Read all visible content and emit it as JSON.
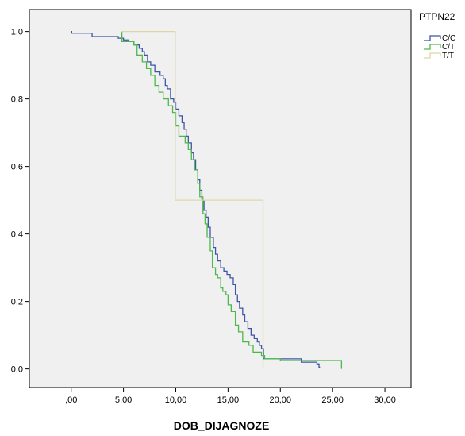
{
  "chart_data": {
    "type": "line",
    "step": true,
    "xlabel": "DOB_DIJAGNOZE",
    "ylabel": "",
    "xlim": [
      -4,
      32.5
    ],
    "ylim": [
      -0.055,
      1.065
    ],
    "xticks": [
      0,
      5,
      10,
      15,
      20,
      25,
      30
    ],
    "xtick_labels": [
      ",00",
      "5,00",
      "10,00",
      "15,00",
      "20,00",
      "25,00",
      "30,00"
    ],
    "yticks": [
      0,
      0.2,
      0.4,
      0.6,
      0.8,
      1.0
    ],
    "ytick_labels": [
      "0,0",
      "0,2",
      "0,4",
      "0,6",
      "0,8",
      "1,0"
    ],
    "grid": false,
    "plot_background": "#f0f0f0",
    "legend": {
      "title": "PTPN22",
      "placement": "right"
    },
    "series": [
      {
        "name": "C/C",
        "color": "#3e55a8",
        "points": [
          [
            0.0,
            1.0
          ],
          [
            0.05,
            0.995
          ],
          [
            2.0,
            0.985
          ],
          [
            4.5,
            0.98
          ],
          [
            5.0,
            0.975
          ],
          [
            5.5,
            0.97
          ],
          [
            6.0,
            0.96
          ],
          [
            6.5,
            0.95
          ],
          [
            6.8,
            0.94
          ],
          [
            7.0,
            0.93
          ],
          [
            7.3,
            0.91
          ],
          [
            7.6,
            0.9
          ],
          [
            8.0,
            0.88
          ],
          [
            8.5,
            0.87
          ],
          [
            8.8,
            0.86
          ],
          [
            9.0,
            0.84
          ],
          [
            9.2,
            0.83
          ],
          [
            9.5,
            0.8
          ],
          [
            9.8,
            0.79
          ],
          [
            10.0,
            0.77
          ],
          [
            10.3,
            0.75
          ],
          [
            10.6,
            0.73
          ],
          [
            10.8,
            0.71
          ],
          [
            11.0,
            0.69
          ],
          [
            11.2,
            0.67
          ],
          [
            11.5,
            0.64
          ],
          [
            11.7,
            0.62
          ],
          [
            11.9,
            0.59
          ],
          [
            12.1,
            0.56
          ],
          [
            12.3,
            0.53
          ],
          [
            12.5,
            0.5
          ],
          [
            12.7,
            0.47
          ],
          [
            12.9,
            0.45
          ],
          [
            13.1,
            0.42
          ],
          [
            13.3,
            0.39
          ],
          [
            13.6,
            0.36
          ],
          [
            13.8,
            0.34
          ],
          [
            14.0,
            0.32
          ],
          [
            14.3,
            0.3
          ],
          [
            14.6,
            0.29
          ],
          [
            14.9,
            0.28
          ],
          [
            15.2,
            0.27
          ],
          [
            15.5,
            0.25
          ],
          [
            15.7,
            0.22
          ],
          [
            15.9,
            0.2
          ],
          [
            16.1,
            0.18
          ],
          [
            16.4,
            0.16
          ],
          [
            16.6,
            0.14
          ],
          [
            16.9,
            0.12
          ],
          [
            17.2,
            0.1
          ],
          [
            17.5,
            0.09
          ],
          [
            17.8,
            0.08
          ],
          [
            18.0,
            0.07
          ],
          [
            18.2,
            0.06
          ],
          [
            18.4,
            0.03
          ],
          [
            21.0,
            0.03
          ],
          [
            22.0,
            0.02
          ],
          [
            23.5,
            0.015
          ],
          [
            23.7,
            0.005
          ],
          [
            23.8,
            0.005
          ]
        ]
      },
      {
        "name": "C/T",
        "color": "#4db84a",
        "points": [
          [
            4.8,
            1.0
          ],
          [
            4.85,
            0.97
          ],
          [
            6.0,
            0.96
          ],
          [
            6.3,
            0.93
          ],
          [
            6.8,
            0.91
          ],
          [
            7.2,
            0.89
          ],
          [
            7.6,
            0.87
          ],
          [
            8.0,
            0.84
          ],
          [
            8.4,
            0.82
          ],
          [
            8.8,
            0.8
          ],
          [
            9.3,
            0.78
          ],
          [
            9.7,
            0.76
          ],
          [
            10.0,
            0.72
          ],
          [
            10.3,
            0.69
          ],
          [
            10.6,
            0.69
          ],
          [
            10.9,
            0.67
          ],
          [
            11.2,
            0.65
          ],
          [
            11.5,
            0.62
          ],
          [
            11.8,
            0.59
          ],
          [
            12.1,
            0.55
          ],
          [
            12.3,
            0.51
          ],
          [
            12.6,
            0.46
          ],
          [
            12.8,
            0.43
          ],
          [
            13.0,
            0.39
          ],
          [
            13.3,
            0.35
          ],
          [
            13.5,
            0.3
          ],
          [
            13.8,
            0.28
          ],
          [
            14.0,
            0.27
          ],
          [
            14.3,
            0.24
          ],
          [
            14.5,
            0.23
          ],
          [
            14.8,
            0.22
          ],
          [
            15.0,
            0.19
          ],
          [
            15.3,
            0.17
          ],
          [
            15.7,
            0.13
          ],
          [
            16.0,
            0.11
          ],
          [
            16.4,
            0.08
          ],
          [
            17.0,
            0.07
          ],
          [
            17.4,
            0.05
          ],
          [
            18.2,
            0.04
          ],
          [
            18.5,
            0.03
          ],
          [
            20.0,
            0.025
          ],
          [
            25.8,
            0.025
          ],
          [
            25.85,
            0.0
          ]
        ]
      },
      {
        "name": "T/T",
        "color": "#ddd7a8",
        "points": [
          [
            4.8,
            1.0
          ],
          [
            9.9,
            1.0
          ],
          [
            9.95,
            0.5
          ],
          [
            18.3,
            0.5
          ],
          [
            18.35,
            0.0
          ]
        ]
      }
    ]
  }
}
